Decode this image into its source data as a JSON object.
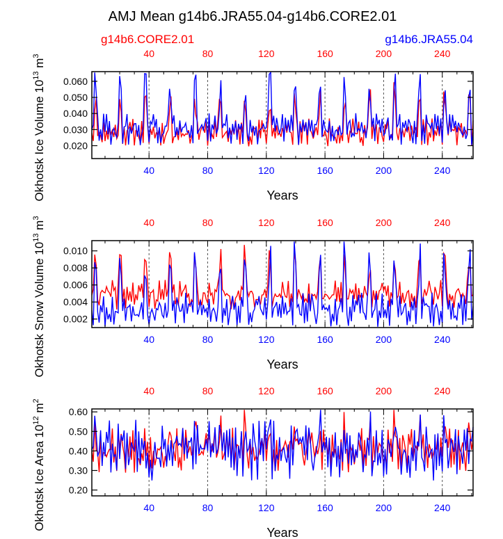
{
  "figure": {
    "title": "AMJ Mean g14b6.JRA55.04-g14b6.CORE2.01",
    "legend_left": "g14b6.CORE2.01",
    "legend_right": "g14b6.JRA55.04",
    "colors": {
      "core": "#ff0000",
      "jra": "#0000ff",
      "axis": "#000000",
      "grid": "#555555"
    }
  },
  "chart_data": [
    {
      "type": "line",
      "id": "ice-volume",
      "ylabel_main": "Okhotsk Ice Volume 10",
      "ylabel_exp": "13",
      "ylabel_unit": " m",
      "ylabel_unit_exp": "3",
      "xlabel": "Years",
      "xlim": [
        1,
        261
      ],
      "ylim": [
        0.012,
        0.066
      ],
      "yticks": [
        0.02,
        0.03,
        0.04,
        0.05,
        0.06
      ],
      "ytick_labels": [
        "0.020",
        "0.030",
        "0.040",
        "0.050",
        "0.060"
      ],
      "xticks": [
        40,
        80,
        120,
        160,
        200,
        240
      ],
      "xtick_labels": [
        "40",
        "80",
        "120",
        "160",
        "200",
        "240"
      ],
      "grid_x": [
        40,
        80,
        120,
        160,
        200,
        240
      ],
      "series": [
        {
          "name": "g14b6.CORE2.01",
          "color": "#ff0000",
          "base": 0.028,
          "amp": 0.006,
          "cycle": 17,
          "peak": 0.022,
          "seed": 11
        },
        {
          "name": "g14b6.JRA55.04",
          "color": "#0000ff",
          "base": 0.03,
          "amp": 0.007,
          "cycle": 17,
          "peak": 0.032,
          "seed": 29
        }
      ]
    },
    {
      "type": "line",
      "id": "snow-volume",
      "ylabel_main": "Okhotsk Snow Volume 10",
      "ylabel_exp": "13",
      "ylabel_unit": " m",
      "ylabel_unit_exp": "3",
      "xlabel": "Years",
      "xlim": [
        1,
        261
      ],
      "ylim": [
        0.001,
        0.0112
      ],
      "yticks": [
        0.002,
        0.004,
        0.006,
        0.008,
        0.01
      ],
      "ytick_labels": [
        "0.002",
        "0.004",
        "0.006",
        "0.008",
        "0.010"
      ],
      "xticks": [
        40,
        80,
        120,
        160,
        200,
        240
      ],
      "xtick_labels": [
        "40",
        "80",
        "120",
        "160",
        "200",
        "240"
      ],
      "grid_x": [
        40,
        80,
        120,
        160,
        200,
        240
      ],
      "series": [
        {
          "name": "g14b6.CORE2.01",
          "color": "#ff0000",
          "base": 0.0048,
          "amp": 0.0012,
          "cycle": 17,
          "peak": 0.005,
          "seed": 41
        },
        {
          "name": "g14b6.JRA55.04",
          "color": "#0000ff",
          "base": 0.003,
          "amp": 0.0014,
          "cycle": 17,
          "peak": 0.007,
          "seed": 53
        }
      ]
    },
    {
      "type": "line",
      "id": "ice-area",
      "ylabel_main": "Okhotsk Ice Area 10",
      "ylabel_exp": "12",
      "ylabel_unit": " m",
      "ylabel_unit_exp": "2",
      "xlabel": "Years",
      "xlim": [
        1,
        261
      ],
      "ylim": [
        0.17,
        0.615
      ],
      "yticks": [
        0.2,
        0.3,
        0.4,
        0.5,
        0.6
      ],
      "ytick_labels": [
        "0.20",
        "0.30",
        "0.40",
        "0.50",
        "0.60"
      ],
      "xticks": [
        40,
        80,
        120,
        160,
        200,
        240
      ],
      "xtick_labels": [
        "40",
        "80",
        "120",
        "160",
        "200",
        "240"
      ],
      "grid_x": [
        40,
        80,
        120,
        160,
        200,
        240
      ],
      "series": [
        {
          "name": "g14b6.CORE2.01",
          "color": "#ff0000",
          "base": 0.4,
          "amp": 0.08,
          "cycle": 17,
          "peak": 0.12,
          "seed": 67
        },
        {
          "name": "g14b6.JRA55.04",
          "color": "#0000ff",
          "base": 0.4,
          "amp": 0.11,
          "cycle": 17,
          "peak": 0.1,
          "seed": 83
        }
      ]
    }
  ]
}
